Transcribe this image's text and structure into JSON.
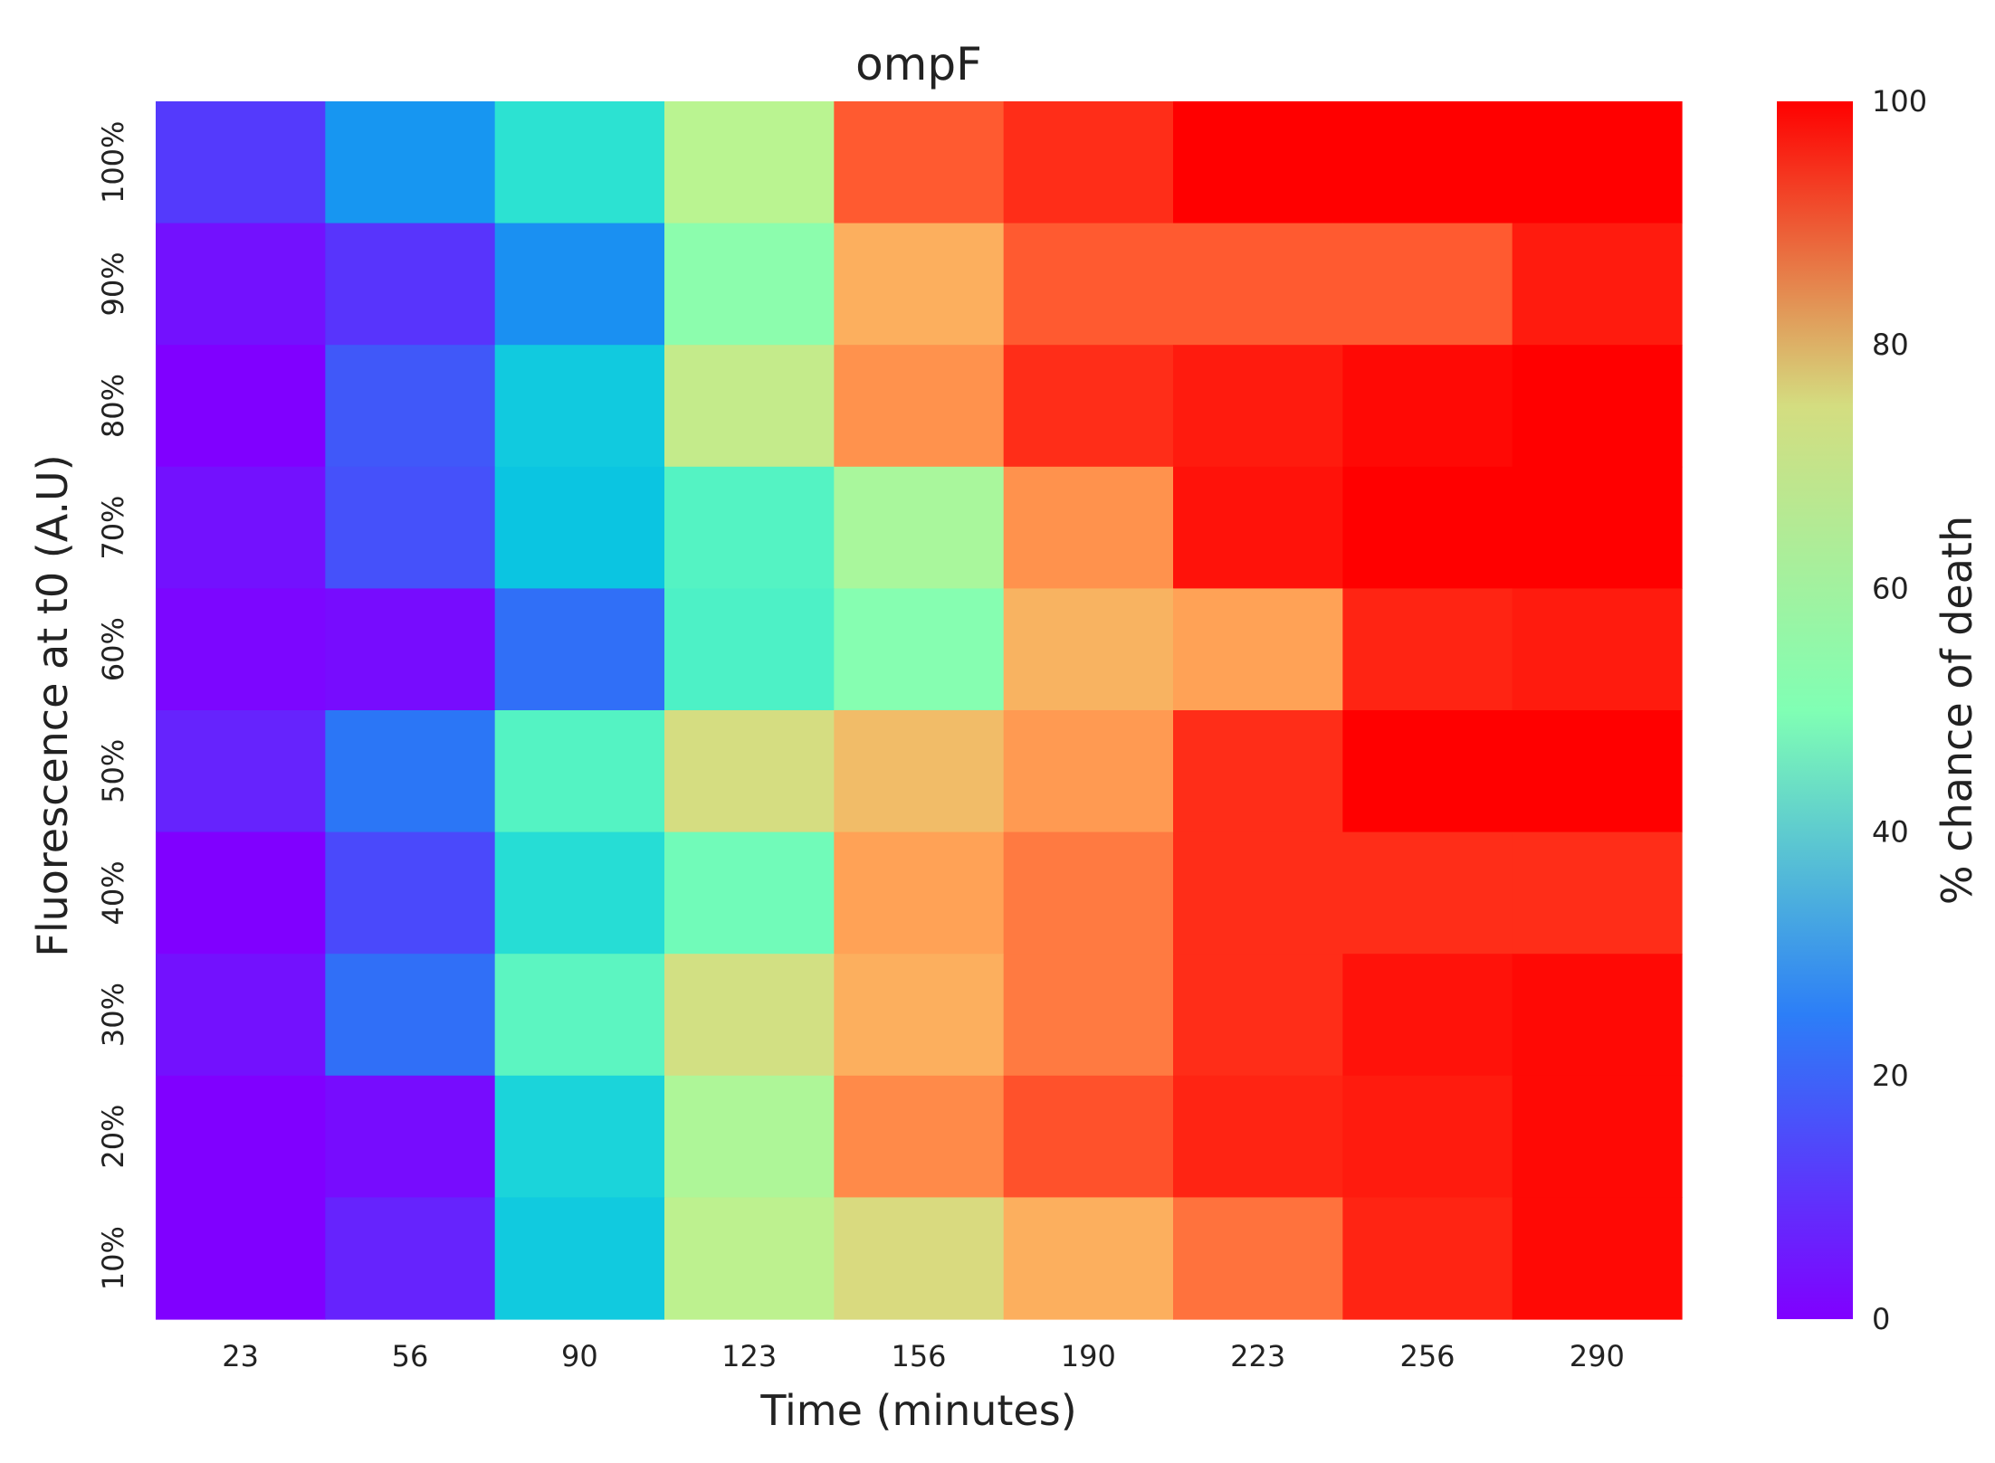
{
  "chart_data": {
    "type": "heatmap",
    "title": "ompF",
    "xlabel": "Time (minutes)",
    "ylabel": "Fluorescence at t0 (A.U)",
    "colorbar_label": "% chance of death",
    "colormap": "rainbow",
    "x_categories": [
      "23",
      "56",
      "90",
      "123",
      "156",
      "190",
      "223",
      "256",
      "290"
    ],
    "y_categories": [
      "100%",
      "90%",
      "80%",
      "70%",
      "60%",
      "50%",
      "40%",
      "30%",
      "20%",
      "10%"
    ],
    "values": [
      [
        10,
        23,
        38,
        60,
        90,
        95,
        100,
        100,
        100
      ],
      [
        3,
        9,
        22,
        52,
        79,
        90,
        90,
        90,
        97
      ],
      [
        0,
        14,
        33,
        63,
        83,
        95,
        97,
        99,
        100
      ],
      [
        3,
        13,
        32,
        44,
        57,
        83,
        98,
        100,
        100
      ],
      [
        1,
        2,
        17,
        43,
        51,
        78,
        81,
        96,
        97
      ],
      [
        6,
        18,
        44,
        68,
        76,
        82,
        95,
        100,
        100
      ],
      [
        0,
        12,
        37,
        48,
        81,
        86,
        95,
        95,
        95
      ],
      [
        3,
        17,
        45,
        67,
        79,
        86,
        95,
        98,
        99
      ],
      [
        0,
        2,
        35,
        58,
        84,
        91,
        96,
        97,
        99
      ],
      [
        0,
        6,
        33,
        61,
        69,
        79,
        87,
        96,
        99
      ]
    ],
    "vmin": 0,
    "vmax": 100,
    "colorbar_ticks": [
      "0",
      "20",
      "40",
      "60",
      "80",
      "100"
    ],
    "grid": false
  }
}
